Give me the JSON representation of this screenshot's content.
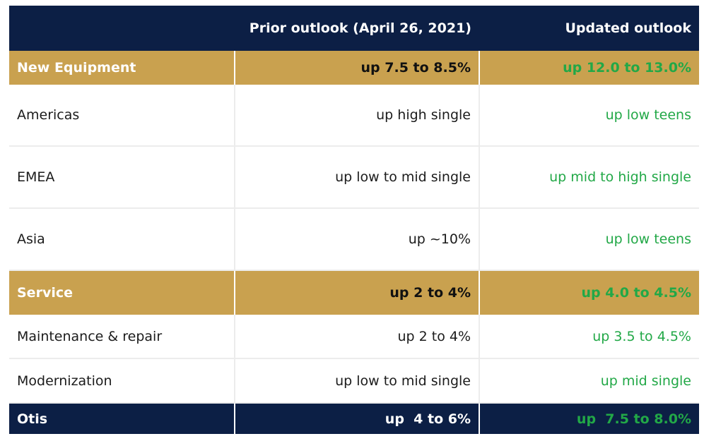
{
  "table": {
    "columns": [
      "",
      "Prior outlook (April 26, 2021)",
      "Updated outlook"
    ],
    "rows": [
      {
        "label": "New Equipment",
        "prior": "up 7.5 to 8.5%",
        "updated": "up 12.0 to 13.0%",
        "kind": "category"
      },
      {
        "label": "Americas",
        "prior": "up high single",
        "updated": "up low teens",
        "kind": "sub"
      },
      {
        "label": "EMEA",
        "prior": "up low to mid single",
        "updated": "up mid to high single",
        "kind": "sub"
      },
      {
        "label": "Asia",
        "prior": "up ~10%",
        "updated": "up low teens",
        "kind": "sub"
      },
      {
        "label": "Service",
        "prior": "up 2 to 4%",
        "updated": "up 4.0 to 4.5%",
        "kind": "category"
      },
      {
        "label": "Maintenance & repair",
        "prior": "up 2 to 4%",
        "updated": "up 3.5 to 4.5%",
        "kind": "sub"
      },
      {
        "label": "Modernization",
        "prior": "up low to mid single",
        "updated": "up mid single",
        "kind": "sub"
      },
      {
        "label": "Otis",
        "prior": "up  4 to 6%",
        "updated": "up  7.5 to 8.0%",
        "kind": "total"
      }
    ]
  },
  "colors": {
    "navy": "#0c1f45",
    "gold": "#c9a14f",
    "green": "#22a847"
  }
}
